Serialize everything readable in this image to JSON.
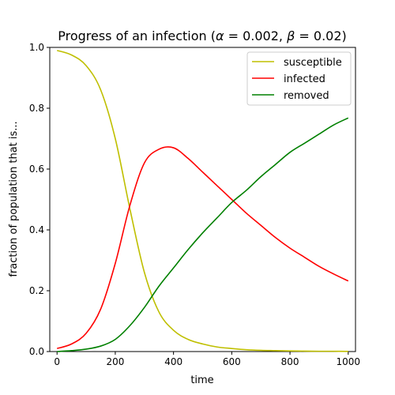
{
  "chart_data": {
    "type": "line",
    "title": "Progress of an infection (α = 0.002, β = 0.02)",
    "xlabel": "time",
    "ylabel": "fraction of population that is...",
    "xlim": [
      -25,
      1025
    ],
    "ylim": [
      0,
      1.0
    ],
    "xticks": [
      0,
      200,
      400,
      600,
      800,
      1000
    ],
    "xtick_labels": [
      "0",
      "200",
      "400",
      "600",
      "800",
      "1000"
    ],
    "yticks": [
      0,
      0.2,
      0.4,
      0.6,
      0.8,
      1.0
    ],
    "ytick_labels": [
      "0.0",
      "0.2",
      "0.4",
      "0.6",
      "0.8",
      "1.0"
    ],
    "grid": false,
    "legend_position": "top-right",
    "x": [
      0,
      50,
      100,
      150,
      200,
      250,
      300,
      350,
      400,
      450,
      500,
      550,
      600,
      650,
      700,
      750,
      800,
      850,
      900,
      950,
      1000
    ],
    "series": [
      {
        "name": "susceptible",
        "color": "#bfbf00",
        "values": [
          0.99,
          0.975,
          0.94,
          0.86,
          0.7,
          0.47,
          0.26,
          0.13,
          0.07,
          0.04,
          0.025,
          0.015,
          0.01,
          0.006,
          0.004,
          0.003,
          0.002,
          0.0015,
          0.001,
          0.001,
          0.0005
        ]
      },
      {
        "name": "infected",
        "color": "#ff0000",
        "values": [
          0.01,
          0.025,
          0.06,
          0.14,
          0.29,
          0.48,
          0.62,
          0.665,
          0.67,
          0.635,
          0.59,
          0.545,
          0.5,
          0.455,
          0.415,
          0.375,
          0.34,
          0.31,
          0.28,
          0.255,
          0.232
        ]
      },
      {
        "name": "removed",
        "color": "#008000",
        "values": [
          0.0,
          0.003,
          0.008,
          0.018,
          0.04,
          0.085,
          0.145,
          0.215,
          0.275,
          0.335,
          0.39,
          0.44,
          0.49,
          0.53,
          0.575,
          0.615,
          0.655,
          0.685,
          0.715,
          0.745,
          0.768
        ]
      }
    ]
  }
}
